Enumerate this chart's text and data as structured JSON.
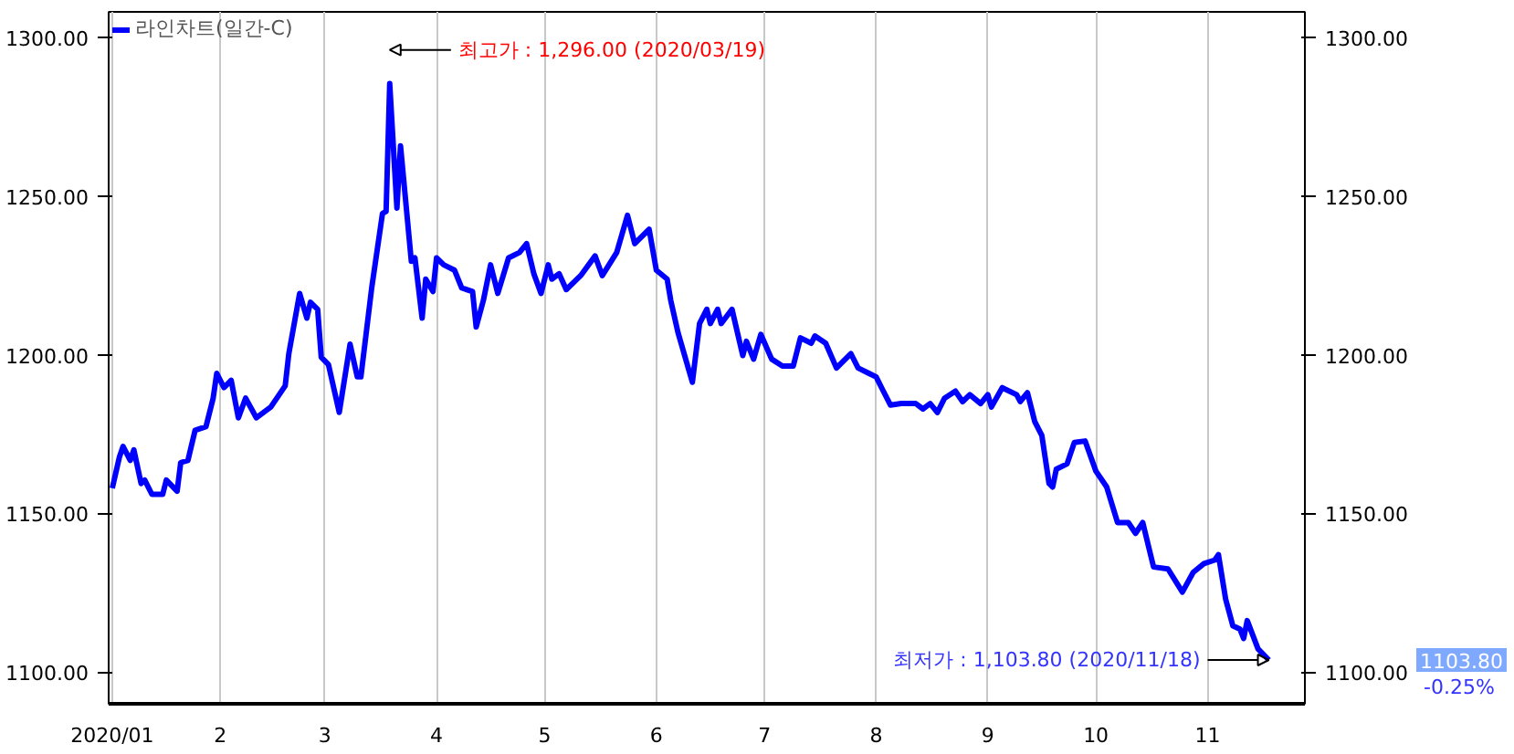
{
  "chart_data": {
    "type": "line",
    "x": [
      "2020-01-02",
      "2020-01-04",
      "2020-01-05",
      "2020-01-07",
      "2020-01-08",
      "2020-01-10",
      "2020-01-11",
      "2020-01-13",
      "2020-01-16",
      "2020-01-17",
      "2020-01-20",
      "2020-01-21",
      "2020-01-23",
      "2020-01-25",
      "2020-01-28",
      "2020-01-30",
      "2020-01-31",
      "2020-02-02",
      "2020-02-04",
      "2020-02-06",
      "2020-02-08",
      "2020-02-11",
      "2020-02-15",
      "2020-02-19",
      "2020-02-20",
      "2020-02-23",
      "2020-02-25",
      "2020-02-26",
      "2020-02-28",
      "2020-02-29",
      "2020-03-02",
      "2020-03-05",
      "2020-03-08",
      "2020-03-10",
      "2020-03-11",
      "2020-03-14",
      "2020-03-17",
      "2020-03-18",
      "2020-03-19",
      "2020-03-21",
      "2020-03-22",
      "2020-03-25",
      "2020-03-26",
      "2020-03-28",
      "2020-03-29",
      "2020-03-31",
      "2020-04-01",
      "2020-04-03",
      "2020-04-06",
      "2020-04-08",
      "2020-04-11",
      "2020-04-12",
      "2020-04-14",
      "2020-04-16",
      "2020-04-18",
      "2020-04-21",
      "2020-04-24",
      "2020-04-26",
      "2020-04-28",
      "2020-04-30",
      "2020-05-02",
      "2020-05-03",
      "2020-05-05",
      "2020-05-07",
      "2020-05-11",
      "2020-05-15",
      "2020-05-17",
      "2020-05-21",
      "2020-05-24",
      "2020-05-26",
      "2020-05-30",
      "2020-06-01",
      "2020-06-04",
      "2020-06-05",
      "2020-06-07",
      "2020-06-11",
      "2020-06-13",
      "2020-06-15",
      "2020-06-16",
      "2020-06-18",
      "2020-06-19",
      "2020-06-22",
      "2020-06-25",
      "2020-06-26",
      "2020-06-28",
      "2020-06-30",
      "2020-07-03",
      "2020-07-06",
      "2020-07-09",
      "2020-07-11",
      "2020-07-14",
      "2020-07-15",
      "2020-07-18",
      "2020-07-21",
      "2020-07-25",
      "2020-07-27",
      "2020-07-30",
      "2020-08-01",
      "2020-08-03",
      "2020-08-05",
      "2020-08-08",
      "2020-08-12",
      "2020-08-14",
      "2020-08-16",
      "2020-08-18",
      "2020-08-20",
      "2020-08-23",
      "2020-08-25",
      "2020-08-27",
      "2020-08-30",
      "2020-09-01",
      "2020-09-02",
      "2020-09-05",
      "2020-09-09",
      "2020-09-10",
      "2020-09-12",
      "2020-09-14",
      "2020-09-16",
      "2020-09-18",
      "2020-09-19",
      "2020-09-20",
      "2020-09-23",
      "2020-09-25",
      "2020-09-28",
      "2020-10-01",
      "2020-10-04",
      "2020-10-07",
      "2020-10-10",
      "2020-10-12",
      "2020-10-14",
      "2020-10-17",
      "2020-10-21",
      "2020-10-25",
      "2020-10-28",
      "2020-10-31",
      "2020-11-03",
      "2020-11-04",
      "2020-11-06",
      "2020-11-08",
      "2020-11-10",
      "2020-11-11",
      "2020-11-12",
      "2020-11-15",
      "2020-11-18"
    ],
    "series": [
      {
        "name": "라인차트(일간-C)",
        "color": "#0000ff",
        "values": [
          1157.9,
          1167.8,
          1171.1,
          1166.7,
          1170,
          1159.4,
          1160.5,
          1156,
          1156,
          1160.5,
          1157,
          1166,
          1166.7,
          1176.2,
          1177.3,
          1186.3,
          1194.1,
          1189.6,
          1191.9,
          1180.1,
          1186.3,
          1180.1,
          1183.5,
          1190.2,
          1200.3,
          1219.3,
          1211.5,
          1216.5,
          1214.3,
          1199.2,
          1196.9,
          1181.8,
          1203.3,
          1193,
          1193,
          1221,
          1244.5,
          1245.1,
          1285.4,
          1246.2,
          1265.8,
          1229.4,
          1230.5,
          1211.5,
          1223.8,
          1219.9,
          1230.5,
          1228.3,
          1226.6,
          1221,
          1219.9,
          1208.7,
          1217.1,
          1228.3,
          1219.3,
          1230.5,
          1232.2,
          1235,
          1225.5,
          1219.3,
          1228.3,
          1223.8,
          1225.5,
          1220.5,
          1224.9,
          1231.1,
          1224.9,
          1232.2,
          1243.9,
          1235,
          1239.5,
          1226.6,
          1223.8,
          1217.1,
          1207,
          1191.3,
          1209.8,
          1214.3,
          1209.8,
          1214.3,
          1209.8,
          1214.3,
          1199.7,
          1204.2,
          1198.6,
          1206.4,
          1198.6,
          1196.4,
          1196.4,
          1205.3,
          1203.6,
          1205.9,
          1203.6,
          1195.8,
          1200.3,
          1195.8,
          1194.1,
          1193,
          1188.5,
          1184.1,
          1184.6,
          1184.6,
          1182.9,
          1184.6,
          1181.8,
          1186.3,
          1188.5,
          1185.2,
          1187.4,
          1184.6,
          1187.4,
          1183.5,
          1189.6,
          1187.4,
          1185.2,
          1188,
          1179,
          1174.5,
          1159.4,
          1158.3,
          1163.9,
          1165.6,
          1172.3,
          1172.8,
          1163.3,
          1158.3,
          1147.1,
          1147.1,
          1143.7,
          1147.1,
          1133.1,
          1132.5,
          1125.2,
          1131.4,
          1134.2,
          1135.3,
          1137,
          1123,
          1114.6,
          1113.5,
          1110.6,
          1116.2,
          1107.3,
          1103.8
        ]
      }
    ],
    "xlim": [
      "2020-01-01",
      "2020-11-28"
    ],
    "xticks": [
      {
        "value": "2020-01-02",
        "label": "2020/01"
      },
      {
        "value": "2020-02-01",
        "label": "2"
      },
      {
        "value": "2020-03-01",
        "label": "3"
      },
      {
        "value": "2020-04-01",
        "label": "4"
      },
      {
        "value": "2020-05-01",
        "label": "5"
      },
      {
        "value": "2020-06-01",
        "label": "6"
      },
      {
        "value": "2020-07-01",
        "label": "7"
      },
      {
        "value": "2020-08-01",
        "label": "8"
      },
      {
        "value": "2020-09-01",
        "label": "9"
      },
      {
        "value": "2020-10-01",
        "label": "10"
      },
      {
        "value": "2020-11-01",
        "label": "11"
      }
    ],
    "ylim": [
      1090,
      1308
    ],
    "yticks": [
      {
        "value": 1100,
        "label": "1100.00"
      },
      {
        "value": 1150,
        "label": "1150.00"
      },
      {
        "value": 1200,
        "label": "1200.00"
      },
      {
        "value": 1250,
        "label": "1250.00"
      },
      {
        "value": 1300,
        "label": "1300.00"
      }
    ],
    "y2lim": [
      1090,
      1308
    ],
    "y2ticks": [
      {
        "value": 1100,
        "label": "1100.00"
      },
      {
        "value": 1150,
        "label": "1150.00"
      },
      {
        "value": 1200,
        "label": "1200.00"
      },
      {
        "value": 1250,
        "label": "1250.00"
      },
      {
        "value": 1300,
        "label": "1300.00"
      }
    ],
    "annotations": [
      "최고가 : 1,296.00 (2020/03/19)",
      {
        "text": "최저가 : 1,103.80 (2020/11/18)",
        "x": "2020-11-18",
        "y": 1103.8
      },
      "1103.80",
      "-0.25%"
    ],
    "grid": "x",
    "legend": "top left",
    "marker": "none",
    "line_style": "solid"
  }
}
